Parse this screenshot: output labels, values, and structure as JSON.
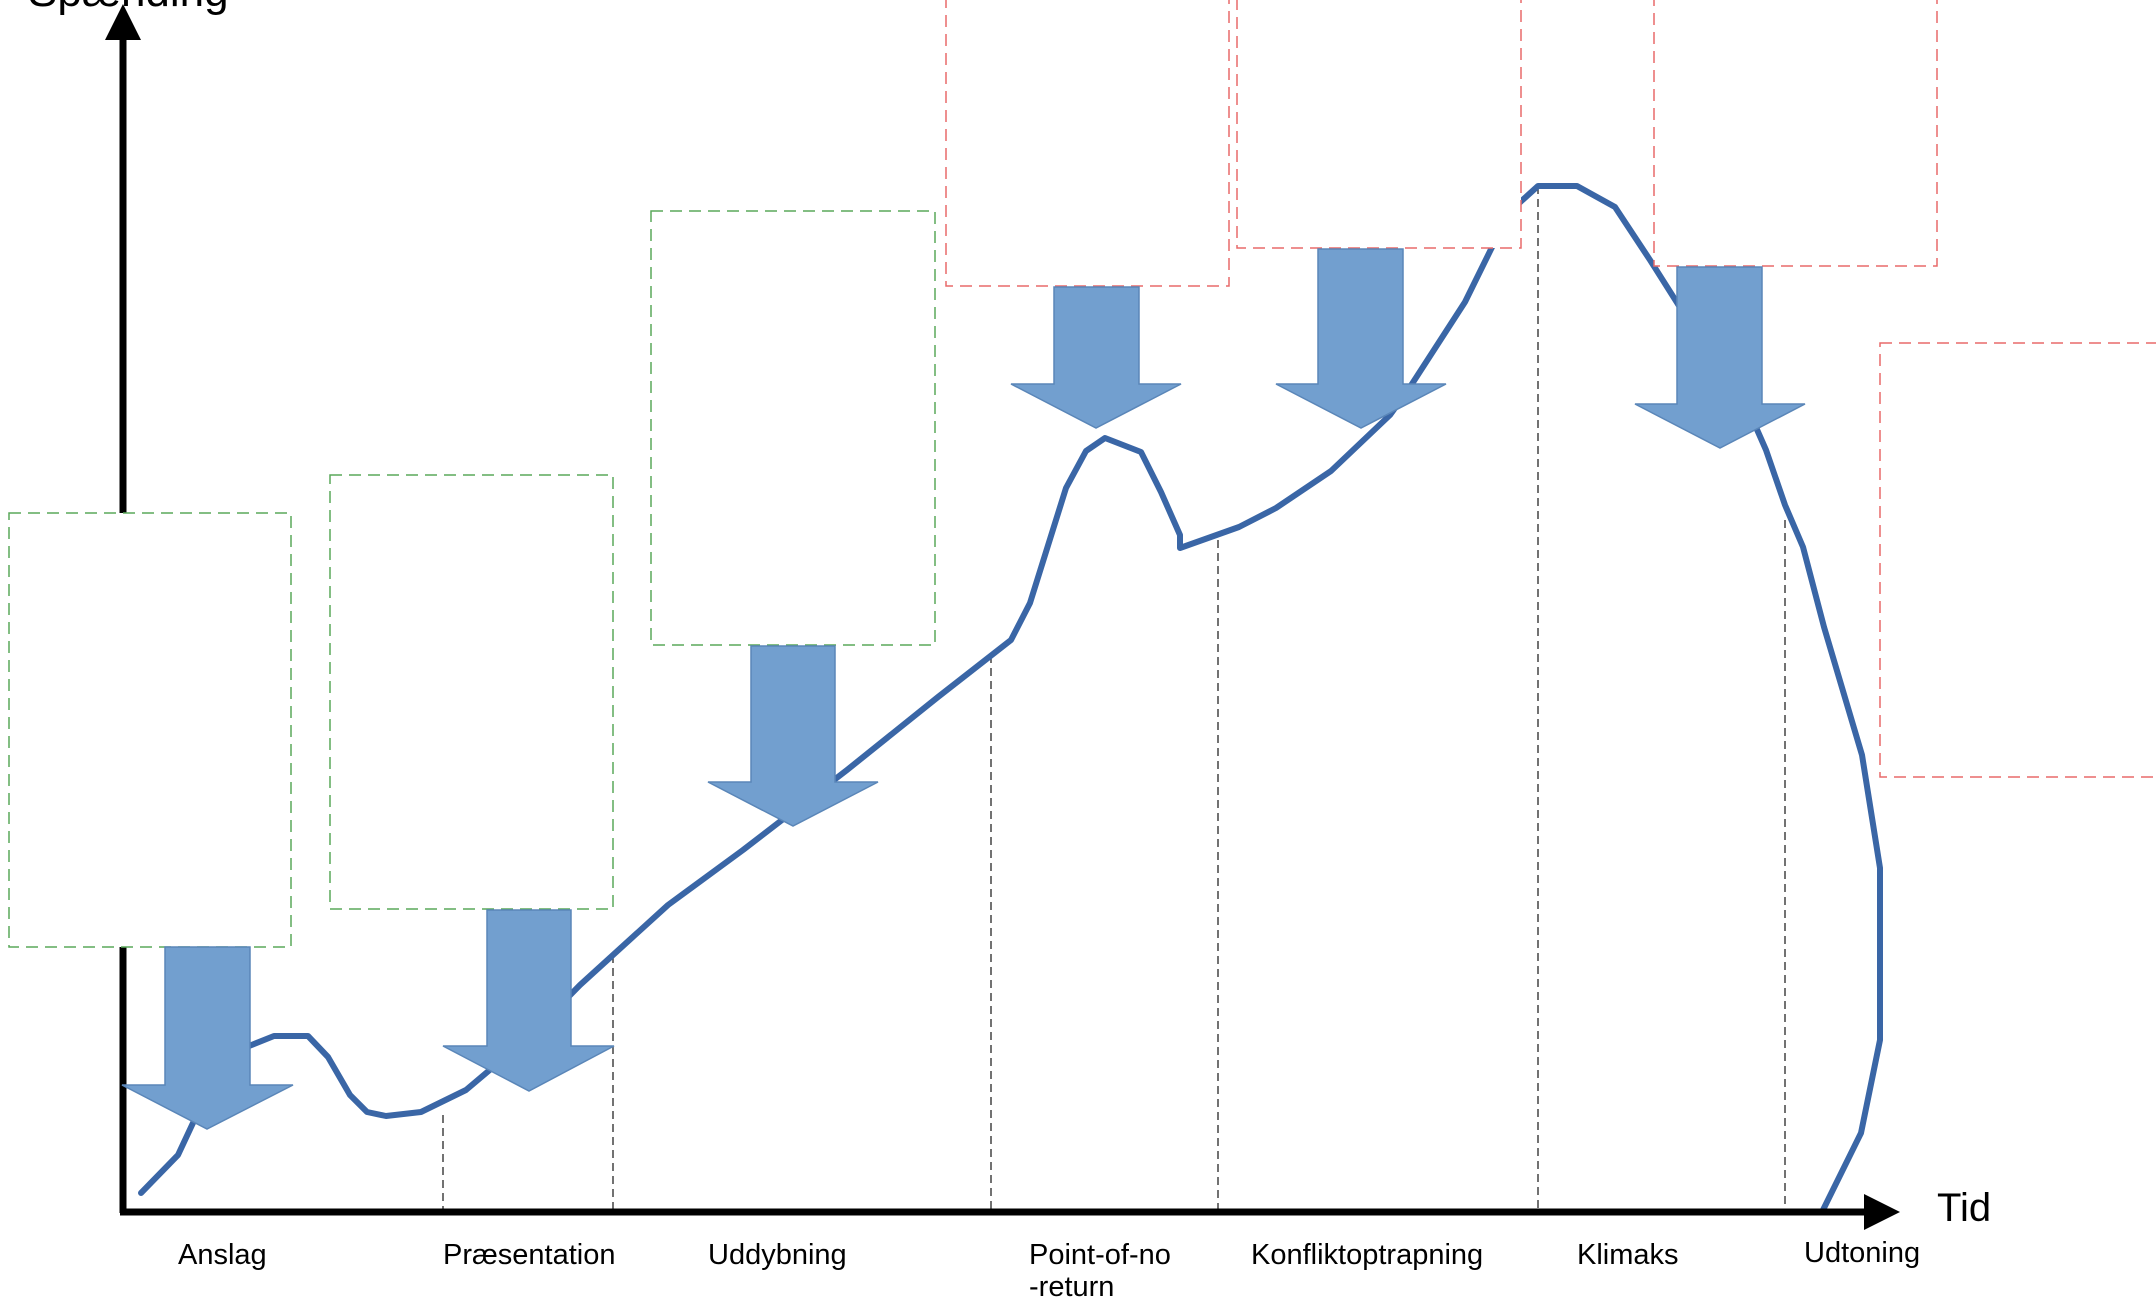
{
  "axes": {
    "x_title": "Tid",
    "y_title": "Spænding"
  },
  "phases": [
    {
      "label": "Anslag"
    },
    {
      "label": "Præsentation"
    },
    {
      "label": "Uddybning"
    },
    {
      "label": "Point-of-no",
      "label_line2": "-return"
    },
    {
      "label": "Konfliktoptrapning"
    },
    {
      "label": "Klimaks"
    },
    {
      "label": "Udtoning"
    }
  ],
  "colors": {
    "curve": "#3a66a6",
    "arrow_fill": "#729fcf",
    "arrow_stroke": "#5a86b8",
    "box_green": "#5aa85a",
    "box_red": "#e86a6a",
    "axis": "#000000",
    "divider": "#444444"
  }
}
